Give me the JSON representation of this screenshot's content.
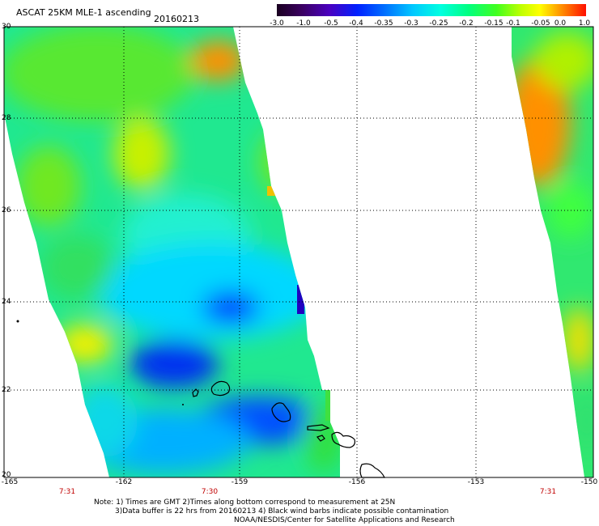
{
  "header": {
    "title": "ASCAT 25KM MLE-1 ascending",
    "date": "20160213"
  },
  "colorbar": {
    "labels": [
      "-3.0",
      "-1.0",
      "-0.5",
      "-0.4",
      "-0.35",
      "-0.3",
      "-0.25",
      "-0.2",
      "-0.15",
      "-0.1",
      "-0.05",
      "0.0",
      "1.0"
    ],
    "colors": [
      "#3a0040",
      "#5a00a0",
      "#3010d0",
      "#0040ff",
      "#0080ff",
      "#00c0ff",
      "#00ffff",
      "#00ffa0",
      "#40ff40",
      "#a0ff00",
      "#ffff00",
      "#ffa000",
      "#ff4000",
      "#ff0000"
    ]
  },
  "map": {
    "lat_labels": [
      "30",
      "28",
      "26",
      "24",
      "22",
      "20"
    ],
    "lon_labels": [
      "-165",
      "-162",
      "-159",
      "-156",
      "-153",
      "-150"
    ],
    "time_labels": [
      "7:31",
      "7:30",
      "7:31"
    ],
    "land_color": "#000000",
    "grid": "dotted"
  },
  "footer": {
    "line1": "Note: 1) Times are GMT 2)Times along bottom correspond to measurement at 25N",
    "line2": "3)Data buffer is 22 hrs from 20160213 4) Black wind barbs indicate possible contamination",
    "line3": "NOAA/NESDIS/Center for Satellite Applications and Research"
  }
}
